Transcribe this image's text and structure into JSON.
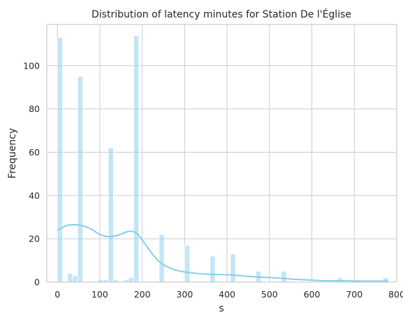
{
  "chart_data": {
    "type": "bar",
    "title": "Distribution of latency minutes for Station De l'Église",
    "xlabel": "s",
    "ylabel": "Frequency",
    "xlim": [
      -25,
      800
    ],
    "ylim": [
      0,
      119
    ],
    "x_ticks": [
      0,
      100,
      200,
      300,
      400,
      500,
      600,
      700,
      800
    ],
    "y_ticks": [
      0,
      20,
      40,
      60,
      80,
      100
    ],
    "grid": true,
    "bin_width": 12,
    "bars": [
      {
        "x0": 0,
        "x1": 12,
        "count": 113
      },
      {
        "x0": 12,
        "x1": 24,
        "count": 0
      },
      {
        "x0": 24,
        "x1": 36,
        "count": 4
      },
      {
        "x0": 36,
        "x1": 48,
        "count": 3
      },
      {
        "x0": 48,
        "x1": 60,
        "count": 95
      },
      {
        "x0": 96,
        "x1": 108,
        "count": 1
      },
      {
        "x0": 108,
        "x1": 120,
        "count": 1
      },
      {
        "x0": 120,
        "x1": 132,
        "count": 62
      },
      {
        "x0": 132,
        "x1": 144,
        "count": 1
      },
      {
        "x0": 156,
        "x1": 168,
        "count": 1
      },
      {
        "x0": 168,
        "x1": 180,
        "count": 2
      },
      {
        "x0": 180,
        "x1": 192,
        "count": 114
      },
      {
        "x0": 240,
        "x1": 252,
        "count": 22
      },
      {
        "x0": 300,
        "x1": 312,
        "count": 17
      },
      {
        "x0": 360,
        "x1": 372,
        "count": 12
      },
      {
        "x0": 408,
        "x1": 420,
        "count": 13
      },
      {
        "x0": 468,
        "x1": 480,
        "count": 5
      },
      {
        "x0": 528,
        "x1": 540,
        "count": 5
      },
      {
        "x0": 660,
        "x1": 672,
        "count": 2
      },
      {
        "x0": 768,
        "x1": 780,
        "count": 2
      }
    ],
    "kde": {
      "x": [
        0,
        20,
        40,
        60,
        80,
        100,
        120,
        140,
        160,
        170,
        180,
        190,
        200,
        220,
        240,
        260,
        280,
        300,
        320,
        340,
        360,
        380,
        400,
        420,
        440,
        460,
        480,
        500,
        520,
        540,
        560,
        580,
        600,
        620,
        640,
        660,
        680,
        700,
        720,
        740,
        760,
        780
      ],
      "y": [
        24,
        26,
        26.5,
        26,
        24.5,
        22,
        21,
        21.5,
        23,
        23.5,
        23.3,
        22,
        19.5,
        14,
        9.5,
        7,
        5.5,
        4.7,
        4.2,
        3.8,
        3.6,
        3.5,
        3.4,
        3.2,
        2.8,
        2.5,
        2.3,
        2.1,
        1.9,
        1.6,
        1.3,
        1.1,
        0.9,
        0.7,
        0.6,
        0.6,
        0.6,
        0.5,
        0.5,
        0.5,
        0.5,
        0.5
      ]
    },
    "colors": {
      "bar": "#87ceeb",
      "bar_opacity": 0.5,
      "kde": "#87ceeb",
      "grid": "#cccccc",
      "text": "#262626"
    }
  }
}
